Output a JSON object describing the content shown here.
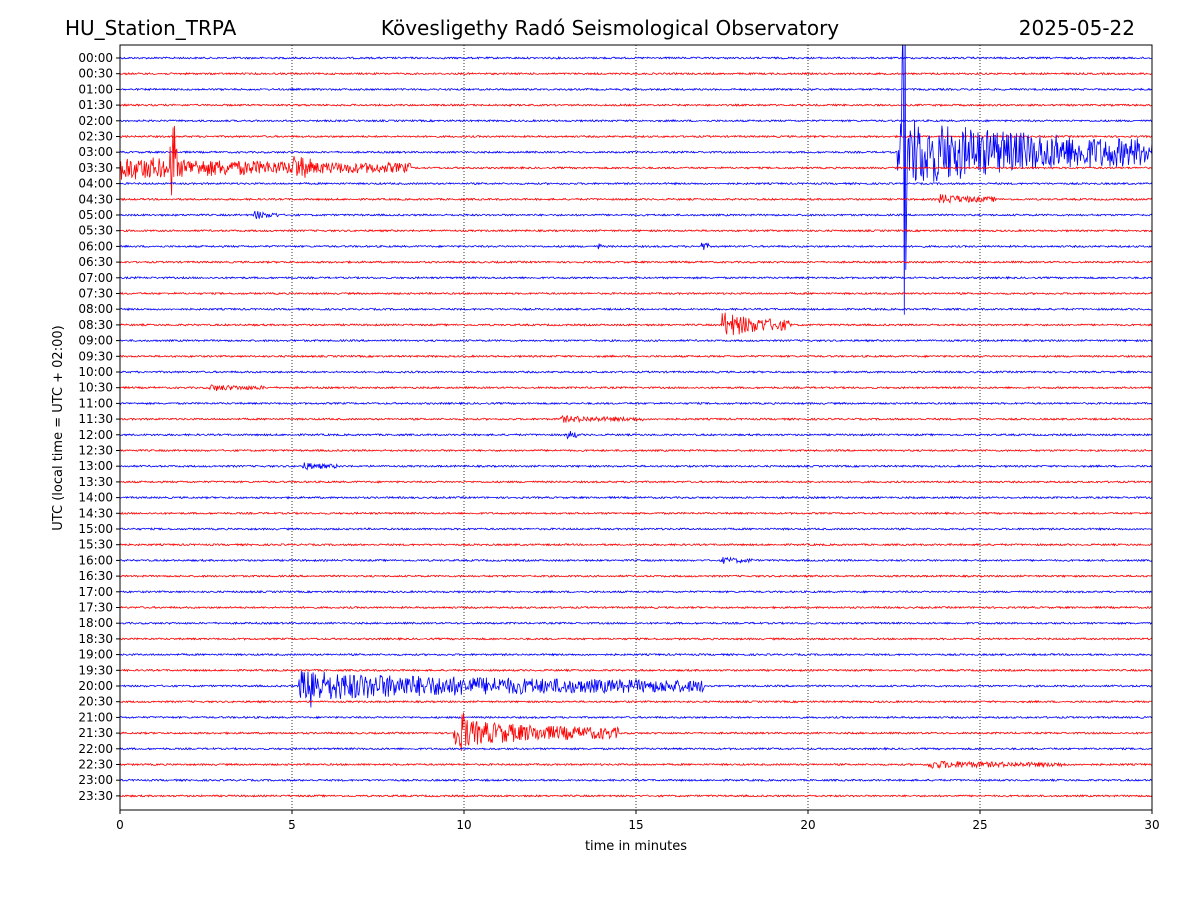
{
  "header": {
    "station": "HU_Station_TRPA",
    "observatory": "Kövesligethy Radó Seismological Observatory",
    "date": "2025-05-22"
  },
  "chart_data": {
    "type": "line",
    "title": "Kövesligethy Radó Seismological Observatory",
    "xlabel": "time in minutes",
    "ylabel": "UTC (local time = UTC + 02:00)",
    "xlim": [
      0,
      30
    ],
    "xticks": [
      "0",
      "5",
      "10",
      "15",
      "20",
      "25",
      "30"
    ],
    "vertical_grid": true,
    "trace_colors": [
      "#0000ff",
      "#ff0000"
    ],
    "rows": [
      "00:00",
      "00:30",
      "01:00",
      "01:30",
      "02:00",
      "02:30",
      "03:00",
      "03:30",
      "04:00",
      "04:30",
      "05:00",
      "05:30",
      "06:00",
      "06:30",
      "07:00",
      "07:30",
      "08:00",
      "08:30",
      "09:00",
      "09:30",
      "10:00",
      "10:30",
      "11:00",
      "11:30",
      "12:00",
      "12:30",
      "13:00",
      "13:30",
      "14:00",
      "14:30",
      "15:00",
      "15:30",
      "16:00",
      "16:30",
      "17:00",
      "17:30",
      "18:00",
      "18:30",
      "19:00",
      "19:30",
      "20:00",
      "20:30",
      "21:00",
      "21:30",
      "22:00",
      "22:30",
      "23:00",
      "23:30"
    ],
    "events": [
      {
        "row": "03:30",
        "t_start": 0,
        "t_end": 8.5,
        "amp": 1.0,
        "spike_t": 1.55,
        "spike_amp": 7.5
      },
      {
        "row": "03:30",
        "t_start": 5.0,
        "t_end": 5.6,
        "amp": 0.8
      },
      {
        "row": "05:00",
        "t_start": 3.9,
        "t_end": 4.6,
        "amp": 0.35
      },
      {
        "row": "06:00",
        "t_start": 13.9,
        "t_end": 14.0,
        "amp": 0.35
      },
      {
        "row": "06:00",
        "t_start": 16.9,
        "t_end": 17.1,
        "amp": 0.5
      },
      {
        "row": "08:30",
        "t_start": 17.5,
        "t_end": 19.5,
        "amp": 1.1
      },
      {
        "row": "10:30",
        "t_start": 2.6,
        "t_end": 4.2,
        "amp": 0.25
      },
      {
        "row": "11:30",
        "t_start": 12.8,
        "t_end": 15.2,
        "amp": 0.25
      },
      {
        "row": "12:00",
        "t_start": 13.0,
        "t_end": 13.3,
        "amp": 0.45
      },
      {
        "row": "13:00",
        "t_start": 5.3,
        "t_end": 6.3,
        "amp": 0.3
      },
      {
        "row": "16:00",
        "t_start": 17.5,
        "t_end": 18.4,
        "amp": 0.25
      },
      {
        "row": "20:00",
        "t_start": 5.2,
        "t_end": 17.0,
        "amp": 1.3,
        "spike_t": 5.6,
        "spike_amp": 2.4
      },
      {
        "row": "21:30",
        "t_start": 9.7,
        "t_end": 14.5,
        "amp": 1.2,
        "spike_t": 10.0,
        "spike_amp": 1.8
      },
      {
        "row": "22:30",
        "t_start": 23.5,
        "t_end": 27.5,
        "amp": 0.3
      },
      {
        "row": "03:00",
        "t_start": 22.6,
        "t_end": 30,
        "amp": 3.2,
        "spike_t": 22.8,
        "spike_amp": 18.0
      },
      {
        "row": "04:30",
        "t_start": 23.8,
        "t_end": 25.5,
        "amp": 0.4
      }
    ]
  }
}
